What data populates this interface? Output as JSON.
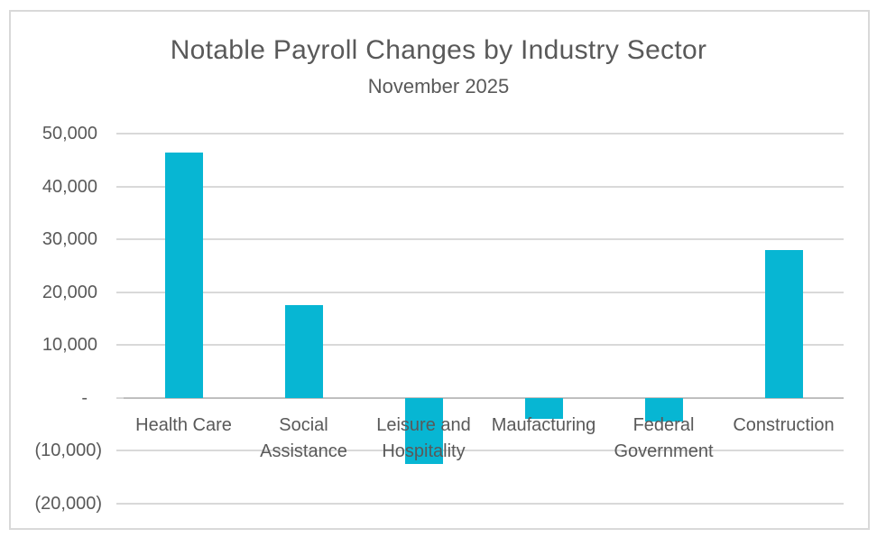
{
  "chart_data": {
    "type": "bar",
    "title": "Notable Payroll Changes by Industry Sector",
    "subtitle": "November 2025",
    "categories": [
      "Health Care",
      "Social Assistance",
      "Leisure and Hospitality",
      "Maufacturing",
      "Federal Government",
      "Construction"
    ],
    "values": [
      46500,
      17500,
      -12500,
      -4000,
      -4500,
      28000
    ],
    "xlabel": "",
    "ylabel": "",
    "ylim": [
      -20000,
      50000
    ],
    "ytick_interval": 10000,
    "yticks": [
      {
        "value": 50000,
        "label": "50,000"
      },
      {
        "value": 40000,
        "label": "40,000"
      },
      {
        "value": 30000,
        "label": "30,000"
      },
      {
        "value": 20000,
        "label": "20,000"
      },
      {
        "value": 10000,
        "label": "10,000"
      },
      {
        "value": 0,
        "label": "-"
      },
      {
        "value": -10000,
        "label": "(10,000)"
      },
      {
        "value": -20000,
        "label": "(20,000)"
      }
    ],
    "grid": true,
    "legend": false,
    "colors": {
      "bar": "#07b6d3",
      "text": "#595959",
      "gridline": "#d9d9d9",
      "axis_line": "#bfbfbf",
      "frame_border": "#d9d9d9",
      "background": "#ffffff"
    }
  }
}
